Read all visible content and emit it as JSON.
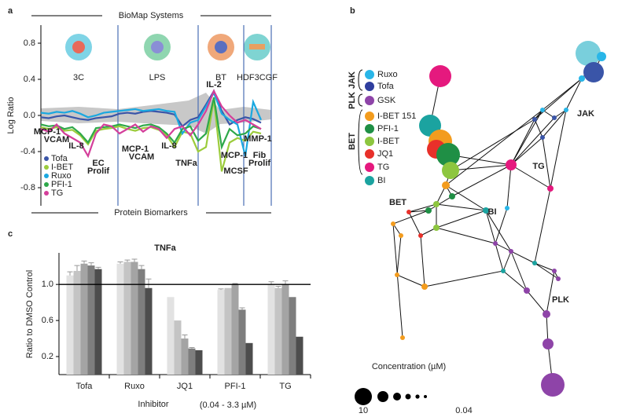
{
  "chart_data": [
    {
      "type": "line",
      "panel": "a",
      "header": "BioMap Systems",
      "footer": "Protein Biomarkers",
      "y_label": "Log Ratio",
      "sections": [
        "3C",
        "LPS",
        "BT",
        "HDF3CGF"
      ],
      "categories": [
        null,
        null,
        null,
        null,
        null,
        null,
        null,
        null,
        null,
        null,
        null,
        null,
        null,
        null,
        null,
        null,
        null,
        null,
        null,
        null,
        null,
        null,
        null,
        null,
        null,
        null,
        null,
        null,
        null
      ],
      "ylim": [
        -1.0,
        1.0
      ],
      "yticks": [
        0.8,
        0.4,
        {
          "value": 0,
          "label": "0.0"
        },
        -0.4,
        -0.8
      ],
      "series": [
        {
          "name": "Tofa",
          "color": "#3a55a8",
          "values": [
            -0.02,
            -0.03,
            -0.01,
            0.0,
            -0.02,
            -0.04,
            -0.05,
            -0.03,
            -0.02,
            -0.01,
            0.02,
            0.03,
            0.02,
            0.04,
            0.05,
            0.04,
            0.03,
            0.01,
            -0.12,
            -0.05,
            -0.02,
            0.12,
            0.27,
            0.05,
            -0.1,
            -0.05,
            -0.02,
            -0.04,
            -0.08
          ]
        },
        {
          "name": "I-BET",
          "color": "#9ccc3c",
          "values": [
            -0.13,
            -0.15,
            -0.13,
            -0.17,
            -0.16,
            -0.22,
            -0.32,
            -0.17,
            -0.15,
            -0.14,
            -0.12,
            -0.15,
            -0.17,
            -0.14,
            -0.13,
            -0.16,
            -0.22,
            -0.35,
            -0.18,
            -0.2,
            -0.4,
            -0.35,
            0.18,
            -0.62,
            -0.3,
            -0.25,
            -0.28,
            -0.18,
            -0.2
          ]
        },
        {
          "name": "Ruxo",
          "color": "#1aa8e0",
          "values": [
            0.03,
            0.02,
            0.04,
            0.03,
            0.05,
            0.02,
            -0.02,
            0.0,
            0.03,
            0.04,
            0.05,
            0.06,
            0.07,
            0.05,
            0.06,
            0.07,
            0.05,
            0.04,
            -0.2,
            -0.08,
            -0.05,
            0.1,
            0.25,
            0.02,
            -0.05,
            -0.1,
            -0.45,
            0.15,
            -0.05
          ]
        },
        {
          "name": "PFI-1",
          "color": "#2ea84a",
          "values": [
            -0.1,
            -0.12,
            -0.11,
            -0.15,
            -0.13,
            -0.2,
            -0.3,
            -0.14,
            -0.13,
            -0.12,
            -0.1,
            -0.12,
            -0.14,
            -0.11,
            -0.1,
            -0.13,
            -0.2,
            -0.3,
            -0.15,
            -0.12,
            -0.28,
            -0.2,
            0.2,
            -0.35,
            -0.15,
            -0.22,
            -0.2,
            -0.12,
            -0.15
          ]
        },
        {
          "name": "TG",
          "color": "#d43f9a",
          "values": [
            -0.15,
            -0.18,
            -0.1,
            -0.2,
            -0.25,
            -0.3,
            -0.45,
            -0.2,
            -0.1,
            -0.12,
            -0.2,
            -0.15,
            -0.1,
            -0.18,
            -0.12,
            -0.15,
            -0.25,
            -0.15,
            -0.12,
            -0.22,
            -0.1,
            0.05,
            0.27,
            0.1,
            0.0,
            -0.08,
            -0.05,
            -0.1,
            -0.15
          ]
        }
      ],
      "annotations": [
        {
          "text": "MCP-1",
          "color": "#2ea84a"
        },
        {
          "text": "VCAM",
          "color": "#2ea84a"
        },
        {
          "text": "IL-8",
          "color": "#2ea84a"
        },
        {
          "text": "EC",
          "color": "#2ea84a"
        },
        {
          "text": "Prolif",
          "color": "#2ea84a"
        },
        {
          "text": "MCP-1",
          "color": "#2ea84a"
        },
        {
          "text": "VCAM",
          "color": "#2ea84a"
        },
        {
          "text": "IL-8",
          "color": "#2ea84a"
        },
        {
          "text": "TNFa",
          "color": "#2ea84a"
        },
        {
          "text": "IL-2",
          "color": "#3a55a8"
        },
        {
          "text": "MCP-1",
          "color": "#2ea84a"
        },
        {
          "text": "MCSF",
          "color": "#3a55a8"
        },
        {
          "text": "MMP-1",
          "color": "#2ea84a"
        },
        {
          "text": "Fib",
          "color": "#2ea84a"
        },
        {
          "text": "Prolif",
          "color": "#2ea84a"
        }
      ]
    },
    {
      "type": "bar",
      "panel": "c",
      "title": "TNFa",
      "y_label": "Ratio to DMSO Control",
      "x_label": "Inhibitor",
      "x_sublabel": "(0.04 - 3.3 µM)",
      "categories": [
        "Tofa",
        "Ruxo",
        "JQ1",
        "PFI-1",
        "TG"
      ],
      "ylim": [
        0,
        1.35
      ],
      "yticks": [
        0.2,
        0.6,
        {
          "value": 1,
          "label": "1.0"
        }
      ],
      "reference_line": 1,
      "series": [
        {
          "color": "#e2e2e2",
          "values": [
            1.1,
            1.23,
            0.86,
            0.94,
            1.0
          ],
          "errors": [
            0.04,
            0.02,
            0,
            0.01,
            0.03
          ]
        },
        {
          "color": "#c4c4c4",
          "values": [
            1.15,
            1.25,
            0.6,
            0.96,
            0.96
          ],
          "errors": [
            0.06,
            0.02,
            0,
            0,
            0.02
          ]
        },
        {
          "color": "#a4a4a4",
          "values": [
            1.23,
            1.25,
            0.4,
            1.0,
            1.0
          ],
          "errors": [
            0.03,
            0.03,
            0.04,
            0.01,
            0.04
          ]
        },
        {
          "color": "#7e7e7e",
          "values": [
            1.21,
            1.17,
            0.29,
            0.72,
            0.86
          ],
          "errors": [
            0.03,
            0.04,
            0.01,
            0.02,
            0
          ]
        },
        {
          "color": "#4d4d4d",
          "values": [
            1.17,
            0.96,
            0.27,
            0.35,
            0.42
          ],
          "errors": [
            0.02,
            0.1,
            0,
            0,
            0
          ]
        }
      ]
    }
  ],
  "network": {
    "panel": "b",
    "legend": [
      {
        "name": "Ruxo",
        "color": "#29b6e8"
      },
      {
        "name": "Tofa",
        "color": "#2f3e9e"
      },
      {
        "name": "GSK",
        "color": "#8e44a8"
      },
      {
        "name": "I-BET 151",
        "color": "#f39c1e"
      },
      {
        "name": "PFI-1",
        "color": "#1f8f45"
      },
      {
        "name": "I-BET",
        "color": "#8dc63f"
      },
      {
        "name": "JQ1",
        "color": "#e8302a"
      },
      {
        "name": "TG",
        "color": "#e5197e"
      },
      {
        "name": "BI",
        "color": "#1ba3a0"
      }
    ],
    "groups": [
      "JAK",
      "PLK",
      "BET"
    ],
    "labels": [
      {
        "text": "JAK",
        "color": "#333333"
      },
      {
        "text": "TG",
        "color": "#e5197e"
      },
      {
        "text": "BI",
        "color": "#1ba3a0"
      },
      {
        "text": "BET",
        "color": "#333333"
      },
      {
        "text": "PLK",
        "color": "#333333"
      }
    ],
    "size_legend": {
      "title": "Concentration (µM)",
      "max_label": "10",
      "min_label": "0.04"
    }
  }
}
